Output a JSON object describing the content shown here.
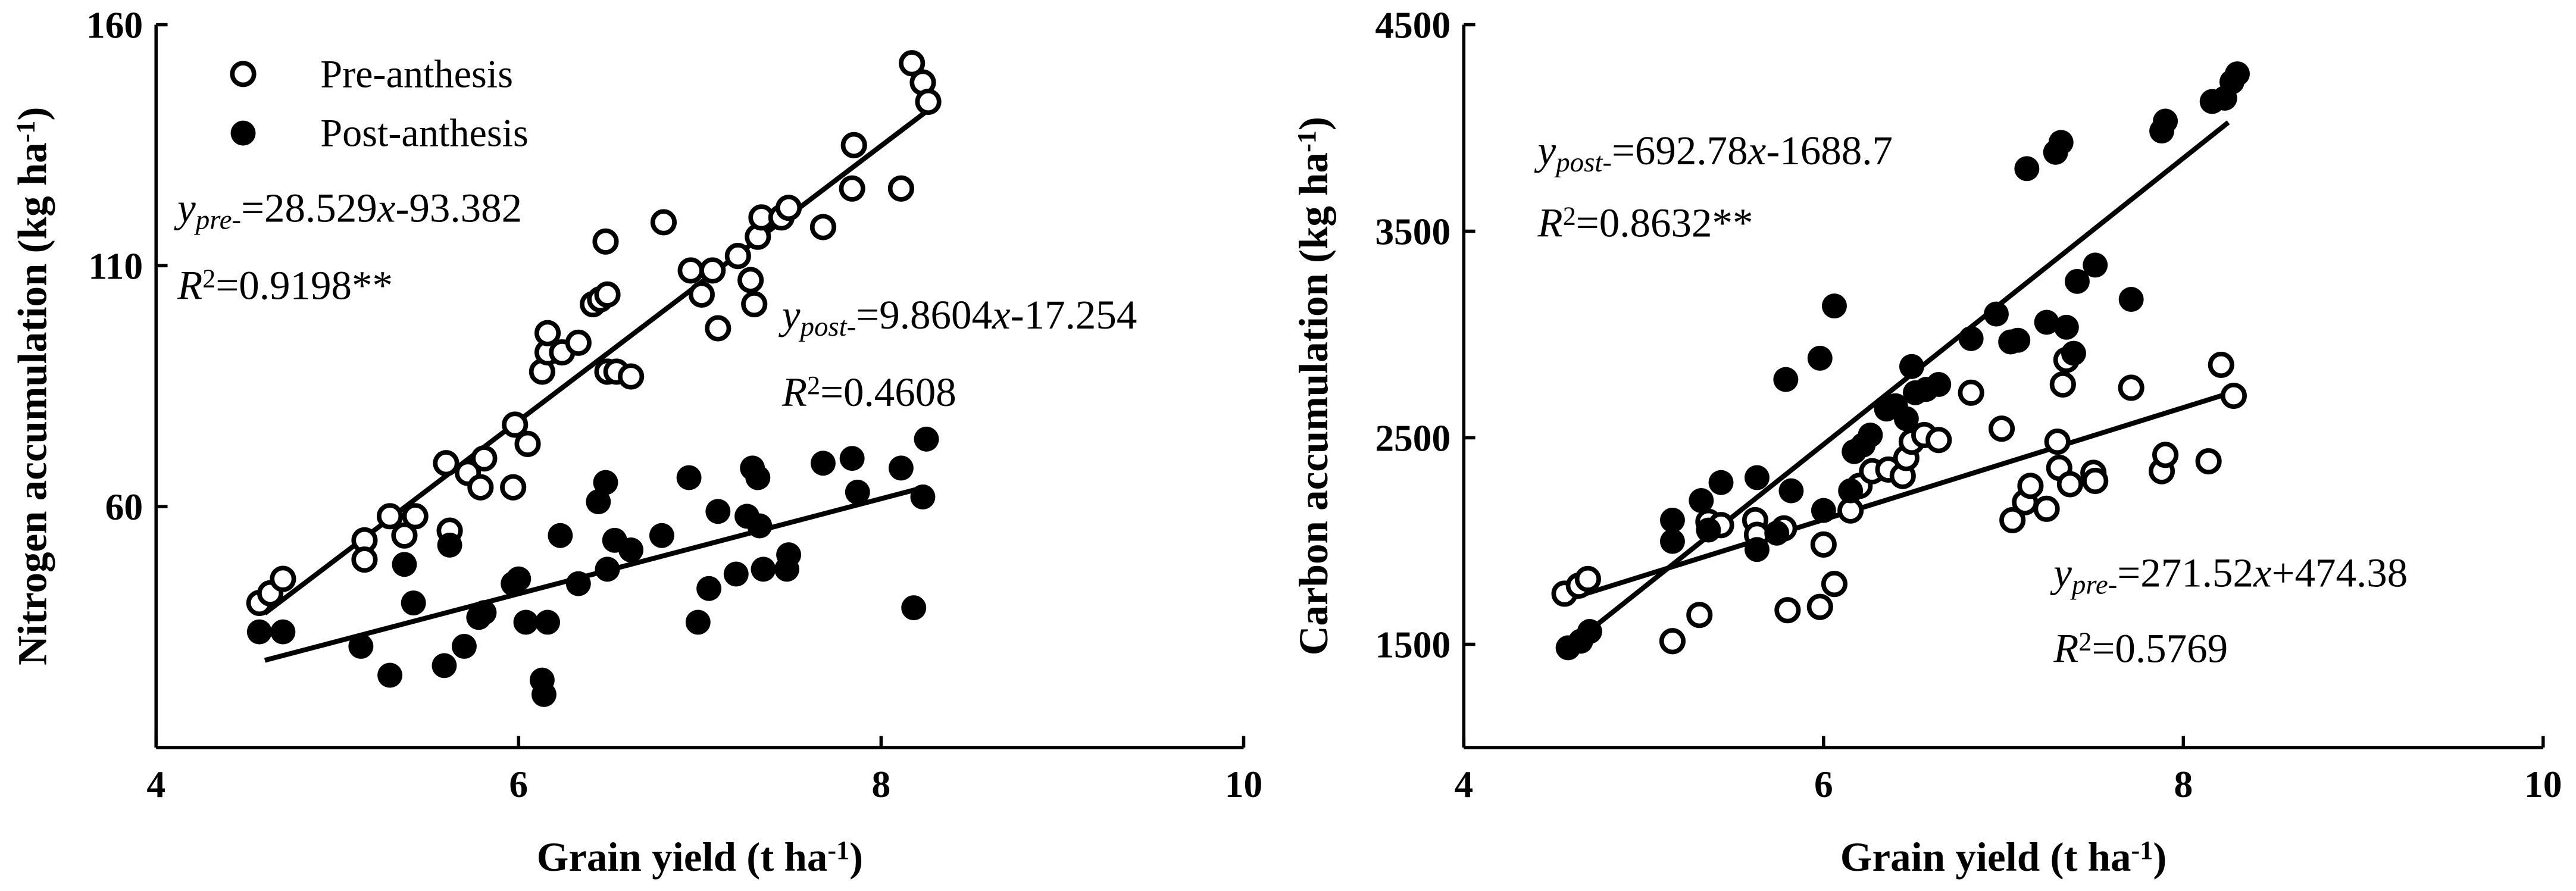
{
  "chart_data": [
    {
      "type": "scatter",
      "xlabel": [
        "Grain yield (t ha",
        "-1",
        ")"
      ],
      "ylabel": [
        "Nitrogen accumulation (kg ha",
        "-1",
        ")"
      ],
      "xlim": [
        4,
        10
      ],
      "xticks": [
        4,
        6,
        8,
        10
      ],
      "ylim": [
        10,
        160
      ],
      "yticks": [
        60,
        110,
        160
      ],
      "legend": "upper left",
      "series": [
        {
          "name": "Pre-anthesis",
          "marker": "open",
          "color": "#000000",
          "x": [
            4.57,
            4.63,
            4.7,
            5.15,
            5.15,
            5.29,
            5.37,
            5.43,
            5.62,
            5.6,
            5.72,
            5.79,
            5.81,
            5.98,
            5.97,
            6.05,
            6.13,
            6.16,
            6.16,
            6.24,
            6.33,
            6.41,
            6.45,
            6.49,
            6.48,
            6.49,
            6.54,
            6.62,
            6.8,
            6.95,
            7.01,
            7.07,
            7.1,
            7.21,
            7.28,
            7.3,
            7.32,
            7.34,
            7.45,
            7.49,
            7.68,
            7.84,
            7.85,
            8.11,
            8.17,
            8.23,
            8.26
          ],
          "values": [
            40,
            42,
            45,
            53,
            49,
            58,
            54,
            58,
            55,
            69,
            67,
            64,
            70,
            77,
            64,
            73,
            88,
            92,
            96,
            92,
            94,
            102,
            103,
            104,
            115,
            88,
            88,
            87,
            119,
            109,
            104,
            109,
            97,
            112,
            107,
            102,
            116,
            120,
            120,
            122,
            118,
            126,
            135,
            126,
            152,
            148,
            144
          ]
        },
        {
          "name": "Post-anthesis",
          "marker": "filled",
          "color": "#000000",
          "x": [
            4.57,
            4.7,
            5.13,
            5.29,
            5.37,
            5.42,
            5.59,
            5.62,
            5.7,
            5.78,
            5.81,
            5.97,
            6.0,
            6.04,
            6.13,
            6.14,
            6.16,
            6.23,
            6.33,
            6.44,
            6.48,
            6.49,
            6.53,
            6.62,
            6.79,
            6.94,
            6.99,
            7.05,
            7.1,
            7.2,
            7.26,
            7.29,
            7.32,
            7.33,
            7.35,
            7.48,
            7.49,
            7.68,
            7.84,
            7.87,
            8.11,
            8.18,
            8.23,
            8.25
          ],
          "values": [
            34,
            34,
            31,
            25,
            48,
            40,
            27,
            52,
            31,
            37,
            38,
            44,
            45,
            36,
            24,
            21,
            36,
            54,
            44,
            61,
            65,
            47,
            53,
            51,
            54,
            66,
            36,
            43,
            59,
            46,
            58,
            68,
            66,
            56,
            47,
            47,
            50,
            69,
            70,
            63,
            68,
            39,
            62,
            74
          ]
        }
      ],
      "fits": [
        {
          "color": "#000000",
          "x": [
            4.6,
            8.25
          ],
          "values": [
            37.85,
            142.0
          ]
        },
        {
          "color": "#000000",
          "x": [
            4.6,
            8.25
          ],
          "values": [
            28.1,
            64.1
          ]
        }
      ],
      "annotations": [
        {
          "kind": "equation",
          "parts": [
            "y",
            "pre-",
            "=28.529",
            "x",
            "-93.382"
          ]
        },
        {
          "kind": "r2",
          "parts": [
            "R",
            "2",
            "=0.9198**"
          ]
        },
        {
          "kind": "equation",
          "parts": [
            "y",
            "post-",
            "=9.8604",
            "x",
            "-17.254"
          ]
        },
        {
          "kind": "r2",
          "parts": [
            "R",
            "2",
            "=0.4608"
          ]
        }
      ]
    },
    {
      "type": "scatter",
      "xlabel": [
        "Grain yield (t ha",
        "-1",
        ")"
      ],
      "ylabel": [
        "Carbon accumulation (kg ha",
        "-1",
        ")"
      ],
      "xlim": [
        4,
        10
      ],
      "xticks": [
        4,
        6,
        8,
        10
      ],
      "ylim": [
        1000,
        4500
      ],
      "yticks": [
        1500,
        2500,
        3500,
        4500
      ],
      "series": [
        {
          "marker": "open",
          "color": "#000000",
          "x": [
            4.56,
            4.64,
            4.69,
            5.16,
            5.31,
            5.36,
            5.43,
            5.62,
            5.63,
            5.78,
            5.8,
            6.0,
            5.98,
            6.06,
            6.15,
            6.2,
            6.27,
            6.36,
            6.44,
            6.46,
            6.49,
            6.56,
            6.64,
            6.82,
            6.99,
            7.05,
            7.12,
            7.15,
            7.24,
            7.3,
            7.31,
            7.33,
            7.35,
            7.37,
            7.5,
            7.51,
            7.71,
            7.88,
            7.9,
            8.14,
            8.21,
            8.28
          ],
          "values": [
            1745,
            1784,
            1816,
            1515,
            1642,
            2093,
            2077,
            2101,
            2030,
            2061,
            1665,
            1983,
            1681,
            1792,
            2148,
            2267,
            2338,
            2346,
            2315,
            2402,
            2481,
            2513,
            2489,
            2718,
            2544,
            2101,
            2188,
            2267,
            2156,
            2481,
            2354,
            2758,
            2877,
            2275,
            2330,
            2291,
            2742,
            2338,
            2417,
            2386,
            2853,
            2703
          ]
        },
        {
          "marker": "filled",
          "color": "#000000",
          "x": [
            4.58,
            4.65,
            4.7,
            5.16,
            5.16,
            5.32,
            5.36,
            5.43,
            5.63,
            5.63,
            5.74,
            5.79,
            5.82,
            5.98,
            6.0,
            6.06,
            6.15,
            6.17,
            6.22,
            6.26,
            6.35,
            6.4,
            6.46,
            6.49,
            6.51,
            6.57,
            6.64,
            6.82,
            6.96,
            7.04,
            7.08,
            7.13,
            7.24,
            7.29,
            7.32,
            7.35,
            7.39,
            7.41,
            7.51,
            7.71,
            7.88,
            7.9,
            8.16,
            8.23,
            8.27,
            8.3
          ],
          "values": [
            1483,
            1515,
            1562,
            2101,
            1998,
            2196,
            2053,
            2283,
            1959,
            2307,
            2038,
            2782,
            2243,
            2885,
            2148,
            3138,
            2243,
            2433,
            2465,
            2513,
            2639,
            2655,
            2592,
            2845,
            2718,
            2734,
            2758,
            2980,
            3099,
            2964,
            2972,
            3803,
            3059,
            3882,
            3930,
            3035,
            2909,
            3257,
            3336,
            3170,
            3985,
            4033,
            4128,
            4144,
            4223,
            4262
          ]
        }
      ],
      "fits": [
        {
          "color": "#000000",
          "x": [
            4.55,
            8.25
          ],
          "values": [
            1463,
            4027
          ]
        },
        {
          "color": "#000000",
          "x": [
            4.55,
            8.25
          ],
          "values": [
            1710,
            2714
          ]
        }
      ],
      "annotations": [
        {
          "kind": "equation",
          "parts": [
            "y",
            "post-",
            "=692.78",
            "x",
            "-1688.7"
          ]
        },
        {
          "kind": "r2",
          "parts": [
            "R",
            "2",
            "=0.8632**"
          ]
        },
        {
          "kind": "equation",
          "parts": [
            "y",
            "pre-",
            "=271.52",
            "x",
            "+474.38"
          ]
        },
        {
          "kind": "r2",
          "parts": [
            "R",
            "2",
            "=0.5769"
          ]
        }
      ]
    }
  ]
}
